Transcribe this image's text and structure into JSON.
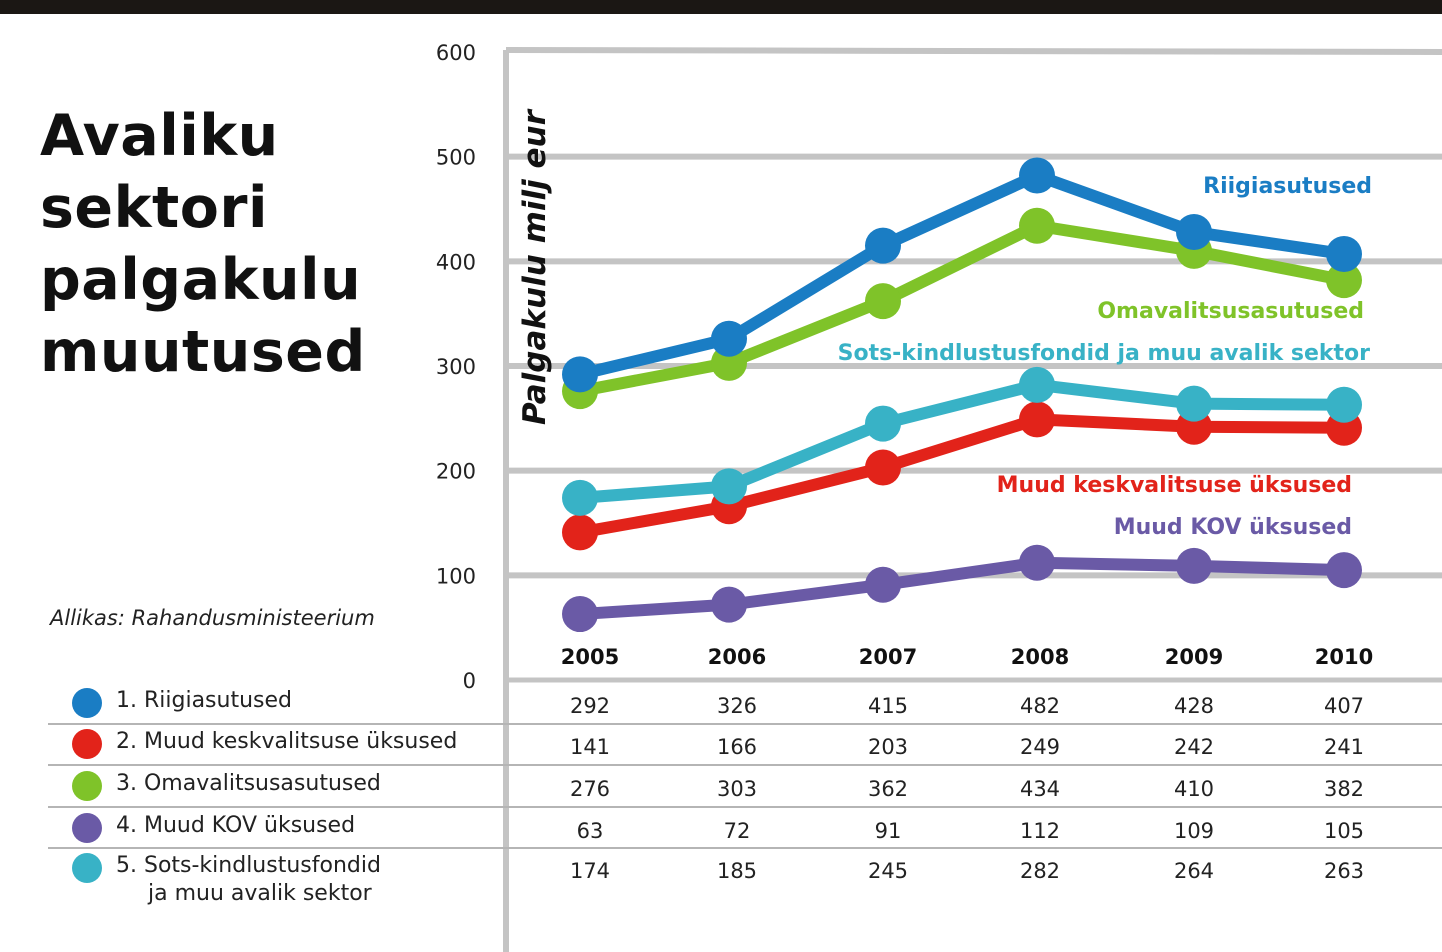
{
  "title_lines": [
    "Avaliku",
    "sektori",
    "palgakulu",
    "muutused"
  ],
  "source": "Allikas: Rahandusministeerium",
  "colors": {
    "grid": "#c4c4c4",
    "blue": "#1a7dc4",
    "red": "#e2231a",
    "green": "#7fc329",
    "purple": "#6a5aa6",
    "cyan": "#38b2c6"
  },
  "legend": [
    {
      "label": "1. Riigiasutused",
      "color": "#1a7dc4"
    },
    {
      "label": "2. Muud keskvalitsuse üksused",
      "color": "#e2231a"
    },
    {
      "label": "3. Omavalitsusasutused",
      "color": "#7fc329"
    },
    {
      "label": "4. Muud KOV üksused",
      "color": "#6a5aa6"
    },
    {
      "label": "5. Sots-kindlustusfondid\nja muu avalik sektor",
      "color": "#38b2c6"
    }
  ],
  "chart_data": {
    "type": "line",
    "title": "Avaliku sektori palgakulu muutused",
    "ylabel": "Palgakulu milj eur",
    "xlabel": "",
    "ylim": [
      0,
      600
    ],
    "yticks": [
      0,
      100,
      200,
      300,
      400,
      500,
      600
    ],
    "grid": true,
    "legend_position": "inline-labels",
    "categories": [
      "2005",
      "2006",
      "2007",
      "2008",
      "2009",
      "2010"
    ],
    "series": [
      {
        "name": "Riigiasutused",
        "color": "#1a7dc4",
        "values": [
          292,
          326,
          415,
          482,
          428,
          407
        ]
      },
      {
        "name": "Muud keskvalitsuse üksused",
        "color": "#e2231a",
        "values": [
          141,
          166,
          203,
          249,
          242,
          241
        ]
      },
      {
        "name": "Omavalitsusasutused",
        "color": "#7fc329",
        "values": [
          276,
          303,
          362,
          434,
          410,
          382
        ]
      },
      {
        "name": "Muud KOV üksused",
        "color": "#6a5aa6",
        "values": [
          63,
          72,
          91,
          112,
          109,
          105
        ]
      },
      {
        "name": "Sots-kindlustusfondid ja muu avalik sektor",
        "color": "#38b2c6",
        "values": [
          174,
          185,
          245,
          282,
          264,
          263
        ]
      }
    ]
  }
}
